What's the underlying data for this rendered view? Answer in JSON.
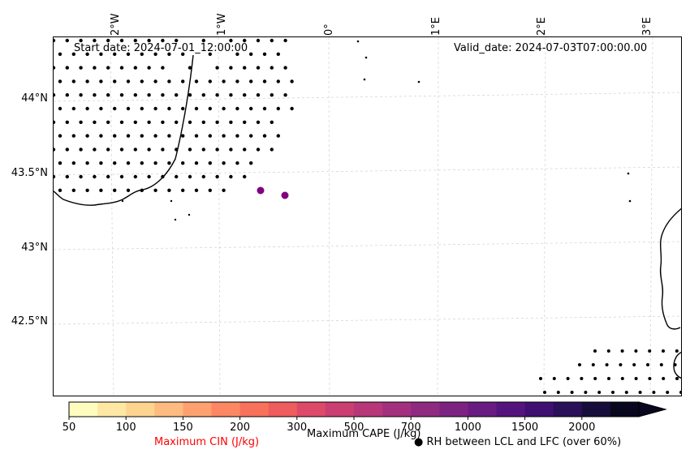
{
  "header": {
    "start_date": "Start date: 2024-07-01_12:00:00",
    "valid_date": "Valid_date: 2024-07-03T07:00:00.00"
  },
  "axes": {
    "lon_labels": [
      "2°W",
      "1°W",
      "0°",
      "1°E",
      "2°E",
      "3°E"
    ],
    "lat_labels": [
      "44°N",
      "43.5°N",
      "43°N",
      "42.5°N"
    ]
  },
  "colorbar": {
    "ticks": [
      "50",
      "100",
      "150",
      "200",
      "300",
      "500",
      "700",
      "1000",
      "1500",
      "2000"
    ],
    "colors": [
      "#fefdbf",
      "#fee8a4",
      "#fed48f",
      "#febb7f",
      "#fea16e",
      "#fc8762",
      "#f8715b",
      "#ee5c5e",
      "#dd4a69",
      "#ca3e72",
      "#b73779",
      "#a3307e",
      "#8f2a81",
      "#7c2382",
      "#681c81",
      "#55147d",
      "#3f0f72",
      "#291059",
      "#160d3a",
      "#09071d"
    ],
    "cape_label": "Maximum CAPE (J/kg)",
    "cin_label": "Maximum CIN (J/kg)",
    "cin_color": "#ff0000",
    "rh_symbol": "●",
    "rh_label": "RH between LCL and LFC (over 60%)"
  },
  "markers": {
    "cin_point_color": "#800080"
  }
}
